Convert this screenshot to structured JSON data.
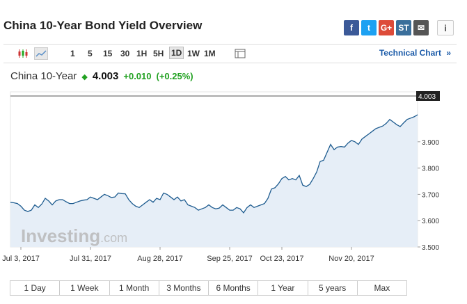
{
  "page": {
    "title": "China 10-Year Bond Yield Overview"
  },
  "share": [
    {
      "name": "facebook",
      "label": "f",
      "color": "#3b5998"
    },
    {
      "name": "twitter",
      "label": "t",
      "color": "#1da1f2"
    },
    {
      "name": "google-plus",
      "label": "G+",
      "color": "#dd4b39"
    },
    {
      "name": "stocktwits",
      "label": "ST",
      "color": "#3a6f9b"
    },
    {
      "name": "email",
      "label": "✉",
      "color": "#555555"
    }
  ],
  "info_label": "i",
  "toolbar": {
    "timeframes": [
      "1",
      "5",
      "15",
      "30",
      "1H",
      "5H",
      "1D",
      "1W",
      "1M"
    ],
    "active_timeframe": "1D",
    "technical_link": "Technical Chart",
    "technical_arrow": "»"
  },
  "quote": {
    "name": "China 10-Year",
    "arrow": "◆",
    "price": "4.003",
    "change": "+0.010",
    "change_pct": "(+0.25%)"
  },
  "chart_data": {
    "type": "area",
    "xlabel": "",
    "ylabel": "",
    "ylim": [
      3.5,
      4.03
    ],
    "y_ticks": [
      "3.500",
      "3.600",
      "3.700",
      "3.800",
      "3.900"
    ],
    "x_ticks": [
      {
        "label": "Jul 3, 2017",
        "index": 3
      },
      {
        "label": "Jul 31, 2017",
        "index": 23
      },
      {
        "label": "Aug 28, 2017",
        "index": 43
      },
      {
        "label": "Sep 25, 2017",
        "index": 63
      },
      {
        "label": "Oct 23, 2017",
        "index": 78
      },
      {
        "label": "Nov 20, 2017",
        "index": 98
      }
    ],
    "last_value_label": "4.003",
    "values": [
      3.67,
      3.668,
      3.665,
      3.655,
      3.64,
      3.635,
      3.64,
      3.66,
      3.65,
      3.663,
      3.685,
      3.675,
      3.66,
      3.675,
      3.68,
      3.68,
      3.672,
      3.665,
      3.665,
      3.67,
      3.675,
      3.678,
      3.68,
      3.69,
      3.685,
      3.68,
      3.69,
      3.7,
      3.695,
      3.688,
      3.69,
      3.705,
      3.703,
      3.702,
      3.68,
      3.665,
      3.655,
      3.65,
      3.66,
      3.67,
      3.68,
      3.67,
      3.685,
      3.68,
      3.705,
      3.7,
      3.69,
      3.68,
      3.69,
      3.675,
      3.68,
      3.66,
      3.655,
      3.65,
      3.64,
      3.645,
      3.65,
      3.66,
      3.65,
      3.645,
      3.648,
      3.66,
      3.65,
      3.64,
      3.64,
      3.65,
      3.645,
      3.63,
      3.65,
      3.66,
      3.65,
      3.655,
      3.66,
      3.665,
      3.685,
      3.72,
      3.725,
      3.74,
      3.76,
      3.768,
      3.755,
      3.76,
      3.755,
      3.772,
      3.735,
      3.73,
      3.738,
      3.76,
      3.785,
      3.825,
      3.83,
      3.86,
      3.89,
      3.87,
      3.88,
      3.882,
      3.88,
      3.895,
      3.905,
      3.9,
      3.89,
      3.91,
      3.92,
      3.93,
      3.94,
      3.95,
      3.955,
      3.96,
      3.97,
      3.985,
      3.975,
      3.965,
      3.958,
      3.972,
      3.985,
      3.99,
      3.995,
      4.003
    ]
  },
  "watermark": {
    "brand": "Investing",
    "suffix": ".com"
  },
  "ranges": [
    "1 Day",
    "1 Week",
    "1 Month",
    "3 Months",
    "6 Months",
    "1 Year",
    "5 years",
    "Max"
  ]
}
